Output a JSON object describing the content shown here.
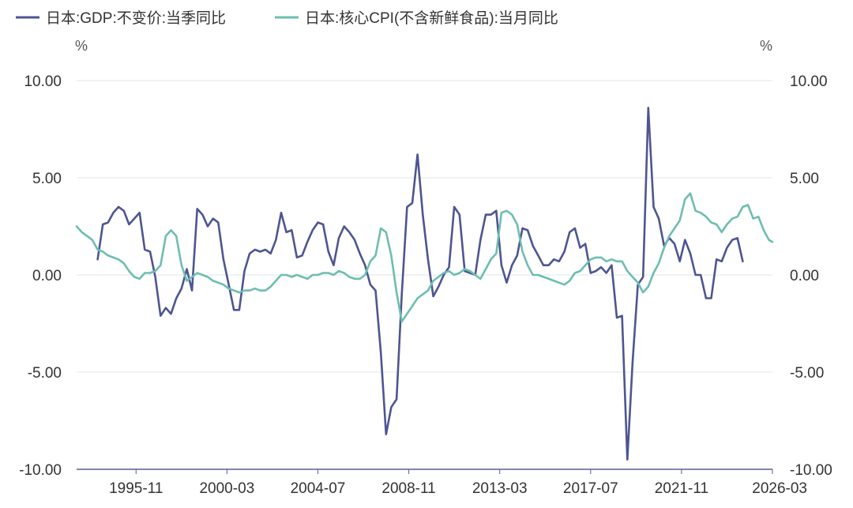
{
  "chart_data": {
    "type": "line",
    "x_ticks": [
      "1995-11",
      "2000-03",
      "2004-07",
      "2008-11",
      "2013-03",
      "2017-07",
      "2021-11",
      "2026-03"
    ],
    "y_left": {
      "unit": "%",
      "ticks": [
        "10.00",
        "5.00",
        "0.00",
        "-5.00",
        "-10.00"
      ],
      "ylim": [
        -10,
        10
      ]
    },
    "y_right": {
      "unit": "%",
      "ticks": [
        "10.00",
        "5.00",
        "0.00",
        "-5.00",
        "-10.00"
      ],
      "ylim": [
        -10,
        10
      ]
    },
    "xlim": [
      "1993-01",
      "2026-03"
    ],
    "grid": true,
    "legend_position": "top-left",
    "series": [
      {
        "name": "日本:GDP:不变价:当季同比",
        "color": "#4e5591",
        "axis": "left",
        "points": [
          [
            "1994-01",
            0.8
          ],
          [
            "1994-04",
            2.6
          ],
          [
            "1994-07",
            2.7
          ],
          [
            "1994-10",
            3.2
          ],
          [
            "1995-01",
            3.5
          ],
          [
            "1995-04",
            3.3
          ],
          [
            "1995-07",
            2.6
          ],
          [
            "1995-10",
            2.9
          ],
          [
            "1996-01",
            3.2
          ],
          [
            "1996-04",
            1.3
          ],
          [
            "1996-07",
            1.2
          ],
          [
            "1996-10",
            -0.1
          ],
          [
            "1997-01",
            -2.1
          ],
          [
            "1997-04",
            -1.7
          ],
          [
            "1997-07",
            -2.0
          ],
          [
            "1997-10",
            -1.2
          ],
          [
            "1998-01",
            -0.7
          ],
          [
            "1998-04",
            0.3
          ],
          [
            "1998-07",
            -0.8
          ],
          [
            "1998-10",
            3.4
          ],
          [
            "1999-01",
            3.1
          ],
          [
            "1999-04",
            2.5
          ],
          [
            "1999-07",
            2.9
          ],
          [
            "1999-10",
            2.7
          ],
          [
            "2000-01",
            0.8
          ],
          [
            "2000-04",
            -0.5
          ],
          [
            "2000-07",
            -1.8
          ],
          [
            "2000-10",
            -1.8
          ],
          [
            "2001-01",
            0.2
          ],
          [
            "2001-04",
            1.1
          ],
          [
            "2001-07",
            1.3
          ],
          [
            "2001-10",
            1.2
          ],
          [
            "2002-01",
            1.3
          ],
          [
            "2002-04",
            1.1
          ],
          [
            "2002-07",
            1.8
          ],
          [
            "2002-10",
            3.2
          ],
          [
            "2003-01",
            2.2
          ],
          [
            "2003-04",
            2.3
          ],
          [
            "2003-07",
            0.9
          ],
          [
            "2003-10",
            1.0
          ],
          [
            "2004-01",
            1.7
          ],
          [
            "2004-04",
            2.3
          ],
          [
            "2004-07",
            2.7
          ],
          [
            "2004-10",
            2.6
          ],
          [
            "2005-01",
            1.2
          ],
          [
            "2005-04",
            0.5
          ],
          [
            "2005-07",
            1.9
          ],
          [
            "2005-10",
            2.5
          ],
          [
            "2006-01",
            2.2
          ],
          [
            "2006-04",
            1.8
          ],
          [
            "2006-07",
            1.1
          ],
          [
            "2006-10",
            0.5
          ],
          [
            "2007-01",
            -0.5
          ],
          [
            "2007-04",
            -0.8
          ],
          [
            "2007-07",
            -4.0
          ],
          [
            "2007-10",
            -8.2
          ],
          [
            "2008-01",
            -6.8
          ],
          [
            "2008-04",
            -6.4
          ],
          [
            "2008-07",
            -1.0
          ],
          [
            "2008-10",
            3.5
          ],
          [
            "2009-01",
            3.7
          ],
          [
            "2009-04",
            6.2
          ],
          [
            "2009-07",
            3.1
          ],
          [
            "2009-10",
            0.8
          ],
          [
            "2010-01",
            -1.1
          ],
          [
            "2010-04",
            -0.6
          ],
          [
            "2010-07",
            0.0
          ],
          [
            "2010-10",
            0.4
          ],
          [
            "2011-01",
            3.5
          ],
          [
            "2011-04",
            3.1
          ],
          [
            "2011-07",
            0.2
          ],
          [
            "2011-10",
            0.1
          ],
          [
            "2012-01",
            0.0
          ],
          [
            "2012-04",
            1.8
          ],
          [
            "2012-07",
            3.1
          ],
          [
            "2012-10",
            3.1
          ],
          [
            "2013-01",
            3.3
          ],
          [
            "2013-04",
            0.5
          ],
          [
            "2013-07",
            -0.4
          ],
          [
            "2013-10",
            0.5
          ],
          [
            "2014-01",
            1.0
          ],
          [
            "2014-04",
            2.4
          ],
          [
            "2014-07",
            2.3
          ],
          [
            "2014-10",
            1.5
          ],
          [
            "2015-01",
            1.0
          ],
          [
            "2015-04",
            0.5
          ],
          [
            "2015-07",
            0.5
          ],
          [
            "2015-10",
            0.8
          ],
          [
            "2016-01",
            0.7
          ],
          [
            "2016-04",
            1.2
          ],
          [
            "2016-07",
            2.2
          ],
          [
            "2016-10",
            2.4
          ],
          [
            "2017-01",
            1.4
          ],
          [
            "2017-04",
            1.6
          ],
          [
            "2017-07",
            0.1
          ],
          [
            "2017-10",
            0.2
          ],
          [
            "2018-01",
            0.4
          ],
          [
            "2018-04",
            0.1
          ],
          [
            "2018-07",
            0.5
          ],
          [
            "2018-10",
            -2.2
          ],
          [
            "2019-01",
            -2.1
          ],
          [
            "2019-04",
            -9.5
          ],
          [
            "2019-07",
            -4.5
          ],
          [
            "2019-10",
            -0.5
          ],
          [
            "2020-01",
            -0.1
          ],
          [
            "2020-04",
            8.6
          ],
          [
            "2020-07",
            3.5
          ],
          [
            "2020-10",
            2.9
          ],
          [
            "2021-01",
            1.5
          ],
          [
            "2021-04",
            1.9
          ],
          [
            "2021-07",
            1.6
          ],
          [
            "2021-10",
            0.7
          ],
          [
            "2022-01",
            1.8
          ],
          [
            "2022-04",
            1.1
          ],
          [
            "2022-07",
            0.0
          ],
          [
            "2022-10",
            0.0
          ],
          [
            "2023-01",
            -1.2
          ],
          [
            "2023-04",
            -1.2
          ],
          [
            "2023-07",
            0.8
          ],
          [
            "2023-10",
            0.7
          ],
          [
            "2024-01",
            1.4
          ],
          [
            "2024-04",
            1.8
          ],
          [
            "2024-07",
            1.9
          ],
          [
            "2024-10",
            0.7
          ]
        ]
      },
      {
        "name": "日本:核心CPI(不含新鲜食品):当月同比",
        "color": "#6dbeb0",
        "axis": "right",
        "points": [
          [
            "1993-01",
            2.5
          ],
          [
            "1993-04",
            2.2
          ],
          [
            "1993-07",
            2.0
          ],
          [
            "1993-10",
            1.8
          ],
          [
            "1994-01",
            1.3
          ],
          [
            "1994-04",
            1.2
          ],
          [
            "1994-07",
            1.0
          ],
          [
            "1994-10",
            0.9
          ],
          [
            "1995-01",
            0.8
          ],
          [
            "1995-04",
            0.6
          ],
          [
            "1995-07",
            0.2
          ],
          [
            "1995-10",
            -0.1
          ],
          [
            "1996-01",
            -0.2
          ],
          [
            "1996-04",
            0.1
          ],
          [
            "1996-07",
            0.1
          ],
          [
            "1996-10",
            0.2
          ],
          [
            "1997-01",
            0.5
          ],
          [
            "1997-04",
            2.0
          ],
          [
            "1997-07",
            2.3
          ],
          [
            "1997-10",
            2.0
          ],
          [
            "1998-01",
            0.5
          ],
          [
            "1998-04",
            -0.3
          ],
          [
            "1998-07",
            -0.1
          ],
          [
            "1998-10",
            0.1
          ],
          [
            "1999-01",
            0.0
          ],
          [
            "1999-04",
            -0.1
          ],
          [
            "1999-07",
            -0.3
          ],
          [
            "1999-10",
            -0.4
          ],
          [
            "2000-01",
            -0.5
          ],
          [
            "2000-04",
            -0.7
          ],
          [
            "2000-07",
            -0.8
          ],
          [
            "2000-10",
            -0.9
          ],
          [
            "2001-01",
            -0.8
          ],
          [
            "2001-04",
            -0.8
          ],
          [
            "2001-07",
            -0.7
          ],
          [
            "2001-10",
            -0.8
          ],
          [
            "2002-01",
            -0.8
          ],
          [
            "2002-04",
            -0.6
          ],
          [
            "2002-07",
            -0.3
          ],
          [
            "2002-10",
            0.0
          ],
          [
            "2003-01",
            0.0
          ],
          [
            "2003-04",
            -0.1
          ],
          [
            "2003-07",
            0.0
          ],
          [
            "2003-10",
            -0.1
          ],
          [
            "2004-01",
            -0.2
          ],
          [
            "2004-04",
            0.0
          ],
          [
            "2004-07",
            0.0
          ],
          [
            "2004-10",
            0.1
          ],
          [
            "2005-01",
            0.1
          ],
          [
            "2005-04",
            0.0
          ],
          [
            "2005-07",
            0.2
          ],
          [
            "2005-10",
            0.1
          ],
          [
            "2006-01",
            -0.1
          ],
          [
            "2006-04",
            -0.2
          ],
          [
            "2006-07",
            -0.2
          ],
          [
            "2006-10",
            0.0
          ],
          [
            "2007-01",
            0.7
          ],
          [
            "2007-04",
            1.0
          ],
          [
            "2007-07",
            2.4
          ],
          [
            "2007-10",
            2.2
          ],
          [
            "2008-01",
            1.0
          ],
          [
            "2008-04",
            -0.9
          ],
          [
            "2008-07",
            -2.4
          ],
          [
            "2008-10",
            -2.0
          ],
          [
            "2009-01",
            -1.6
          ],
          [
            "2009-04",
            -1.2
          ],
          [
            "2009-07",
            -1.0
          ],
          [
            "2009-10",
            -0.8
          ],
          [
            "2010-01",
            -0.3
          ],
          [
            "2010-04",
            -0.1
          ],
          [
            "2010-07",
            0.1
          ],
          [
            "2010-10",
            0.2
          ],
          [
            "2011-01",
            0.0
          ],
          [
            "2011-04",
            0.1
          ],
          [
            "2011-07",
            0.3
          ],
          [
            "2011-10",
            0.2
          ],
          [
            "2012-01",
            0.0
          ],
          [
            "2012-04",
            -0.2
          ],
          [
            "2012-07",
            0.3
          ],
          [
            "2012-10",
            0.8
          ],
          [
            "2013-01",
            1.1
          ],
          [
            "2013-04",
            3.2
          ],
          [
            "2013-07",
            3.3
          ],
          [
            "2013-10",
            3.1
          ],
          [
            "2014-01",
            2.6
          ],
          [
            "2014-04",
            1.2
          ],
          [
            "2014-07",
            0.5
          ],
          [
            "2014-10",
            0.0
          ],
          [
            "2015-01",
            0.0
          ],
          [
            "2015-04",
            -0.1
          ],
          [
            "2015-07",
            -0.2
          ],
          [
            "2015-10",
            -0.3
          ],
          [
            "2016-01",
            -0.4
          ],
          [
            "2016-04",
            -0.5
          ],
          [
            "2016-07",
            -0.3
          ],
          [
            "2016-10",
            0.1
          ],
          [
            "2017-01",
            0.2
          ],
          [
            "2017-04",
            0.5
          ],
          [
            "2017-07",
            0.8
          ],
          [
            "2017-10",
            0.9
          ],
          [
            "2018-01",
            0.9
          ],
          [
            "2018-04",
            0.7
          ],
          [
            "2018-07",
            0.8
          ],
          [
            "2018-10",
            0.7
          ],
          [
            "2019-01",
            0.7
          ],
          [
            "2019-04",
            0.2
          ],
          [
            "2019-07",
            -0.1
          ],
          [
            "2019-10",
            -0.4
          ],
          [
            "2020-01",
            -0.9
          ],
          [
            "2020-04",
            -0.6
          ],
          [
            "2020-07",
            0.1
          ],
          [
            "2020-10",
            0.6
          ],
          [
            "2021-01",
            1.4
          ],
          [
            "2021-04",
            2.0
          ],
          [
            "2021-07",
            2.4
          ],
          [
            "2021-10",
            2.8
          ],
          [
            "2022-01",
            3.9
          ],
          [
            "2022-04",
            4.2
          ],
          [
            "2022-07",
            3.3
          ],
          [
            "2022-10",
            3.2
          ],
          [
            "2023-01",
            3.0
          ],
          [
            "2023-04",
            2.7
          ],
          [
            "2023-07",
            2.6
          ],
          [
            "2023-10",
            2.2
          ],
          [
            "2024-01",
            2.6
          ],
          [
            "2024-04",
            2.9
          ],
          [
            "2024-07",
            3.0
          ],
          [
            "2024-10",
            3.5
          ],
          [
            "2025-01",
            3.6
          ],
          [
            "2025-04",
            2.9
          ],
          [
            "2025-07",
            3.0
          ],
          [
            "2025-10",
            2.3
          ],
          [
            "2026-01",
            1.8
          ],
          [
            "2026-03",
            1.7
          ]
        ]
      }
    ]
  }
}
